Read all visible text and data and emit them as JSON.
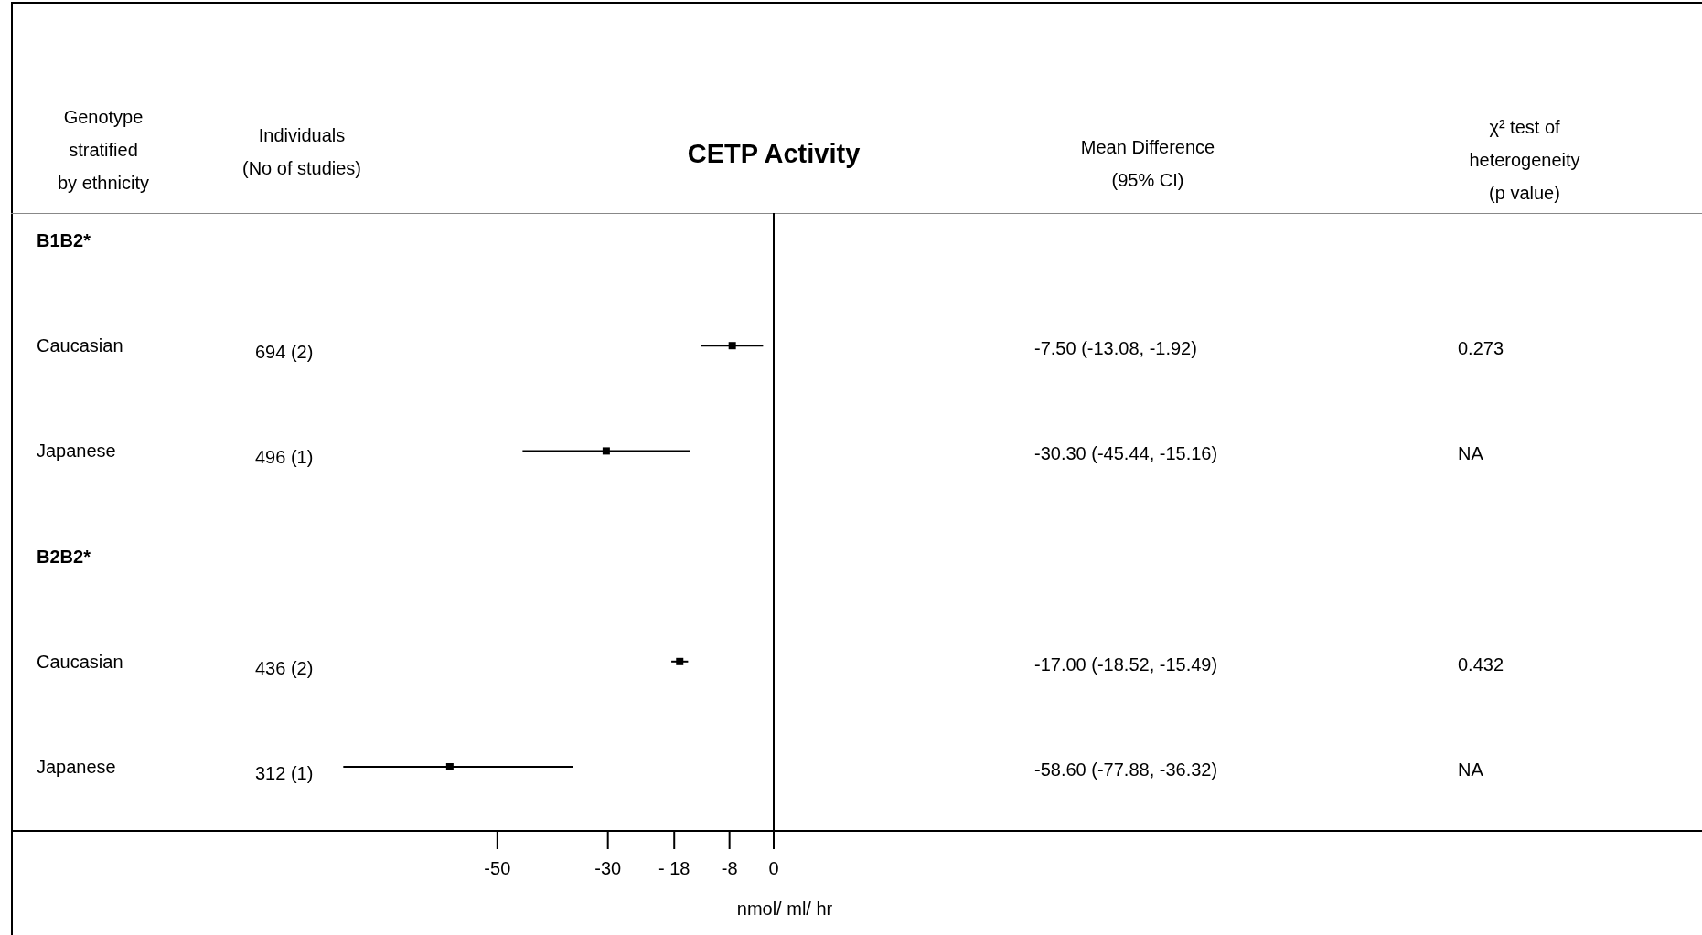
{
  "chart_data": {
    "type": "scatter",
    "orientation": "horizontal",
    "title": "CETP Activity",
    "xlabel": "nmol/ ml/ hr",
    "categories": [
      "B1B2*",
      "Caucasian",
      "Japanese",
      "B2B2*",
      "Caucasian",
      "Japanese"
    ],
    "values": [
      null,
      -7.5,
      -30.3,
      null,
      -17.0,
      -58.6
    ],
    "errors": [
      null,
      [
        -13.08,
        -1.92
      ],
      [
        -45.44,
        -15.16
      ],
      null,
      [
        -18.52,
        -15.49
      ],
      [
        -77.88,
        -36.32
      ]
    ],
    "color": "#000000",
    "marker": "square",
    "xlim": [
      -138,
      0
    ],
    "xticks": [
      -50,
      -30,
      {
        "value": -18,
        "label": "- 18"
      },
      -8,
      0
    ],
    "ref_lines": [
      {
        "axis": "x",
        "value": 0,
        "color": "#000000"
      }
    ],
    "annotations": [
      "Genotype\nstratified\nby ethnicity",
      "Individuals\n(No of studies)",
      "Mean Difference\n(95% CI)",
      "χ² test of\nheterogeneity\n(p value)",
      "694 (2)",
      "496 (1)",
      "436 (2)",
      "312 (1)",
      "-7.50 (-13.08, -1.92)",
      "-30.30 (-45.44, -15.16)",
      "-17.00 (-18.52, -15.49)",
      "-58.60 (-77.88, -36.32)",
      "0.273",
      "NA",
      "0.432",
      "NA"
    ]
  }
}
